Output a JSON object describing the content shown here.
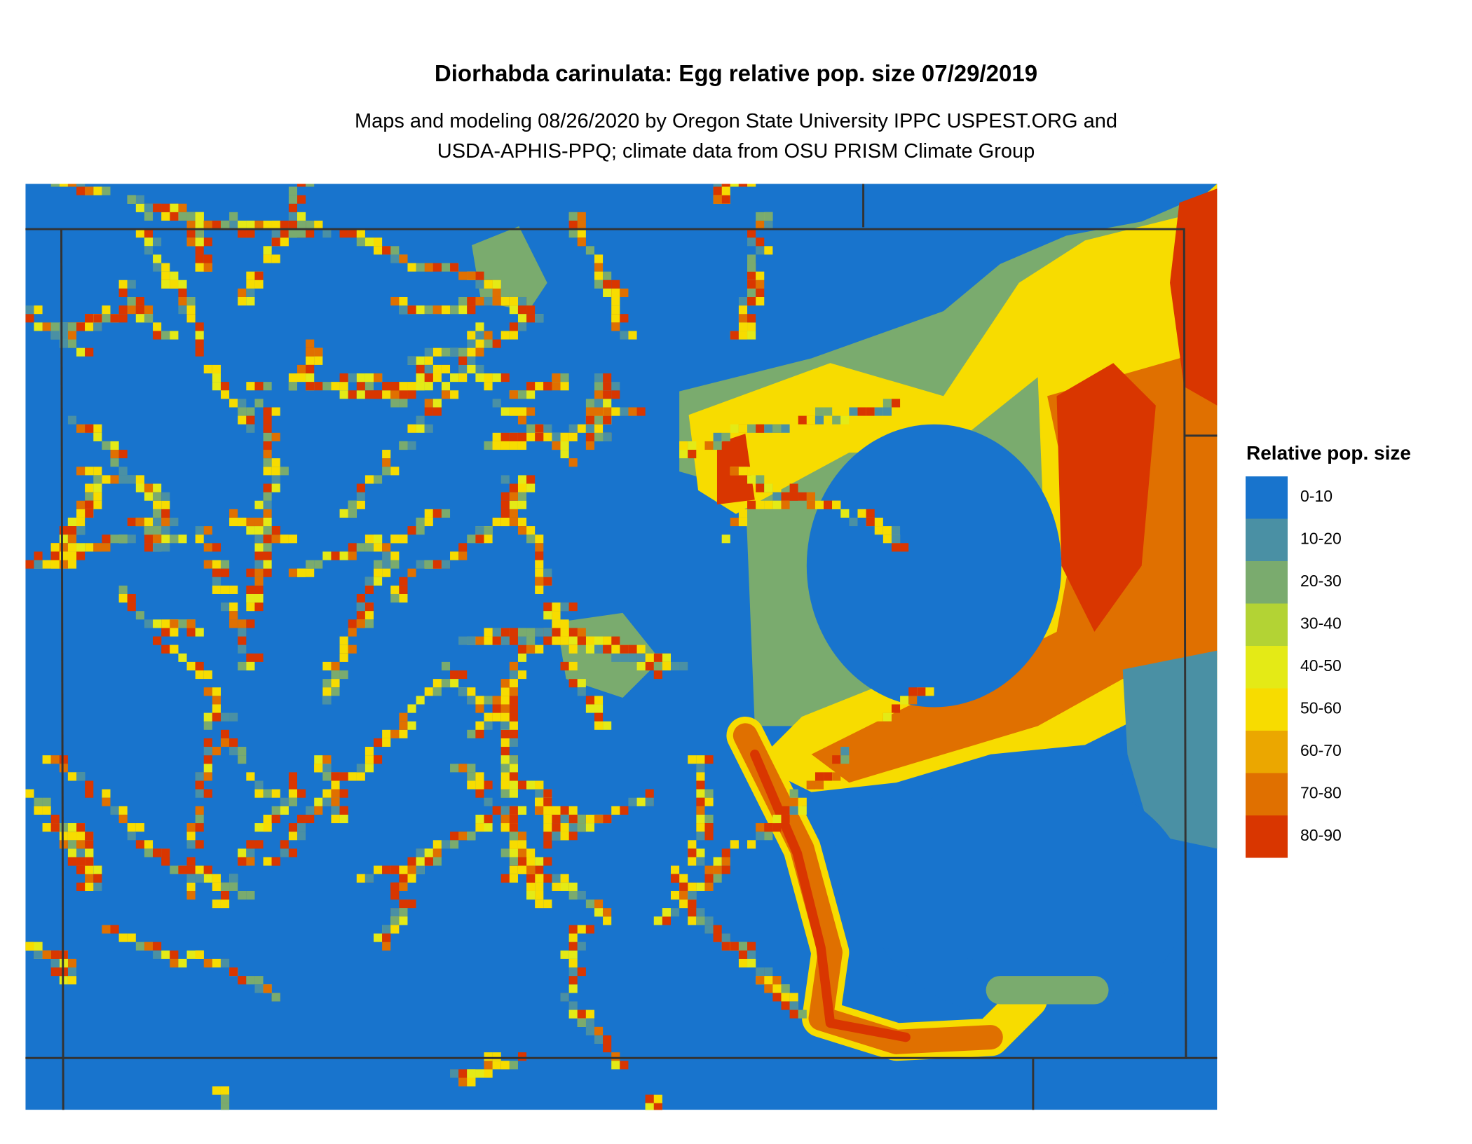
{
  "header": {
    "title": "Diorhabda carinulata: Egg relative pop. size 07/29/2019",
    "subtitle_lines": [
      "Maps and modeling 08/26/2020 by Oregon State University IPPC USPEST.ORG and",
      "USDA-APHIS-PPQ; climate data from OSU PRISM Climate Group"
    ]
  },
  "legend": {
    "title": "Relative pop. size",
    "items": [
      {
        "label": "0-10",
        "color": "#1874cd"
      },
      {
        "label": "10-20",
        "color": "#4a90a4"
      },
      {
        "label": "20-30",
        "color": "#7aab6e"
      },
      {
        "label": "30-40",
        "color": "#b3d334"
      },
      {
        "label": "40-50",
        "color": "#e4ea16"
      },
      {
        "label": "50-60",
        "color": "#f7dc00"
      },
      {
        "label": "60-70",
        "color": "#eba700"
      },
      {
        "label": "70-80",
        "color": "#e07000"
      },
      {
        "label": "80-90",
        "color": "#d93600"
      }
    ]
  }
}
